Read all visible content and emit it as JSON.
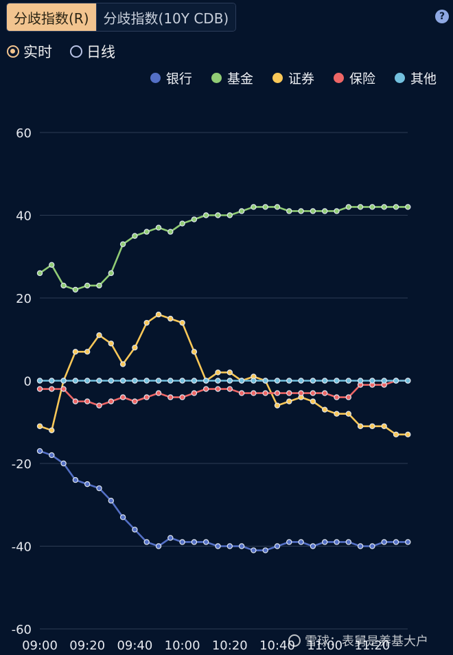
{
  "tabs": [
    {
      "label": "分歧指数(R)",
      "active": true
    },
    {
      "label": "分歧指数(10Y CDB)",
      "active": false
    }
  ],
  "help_label": "?",
  "modes": [
    {
      "label": "实时",
      "selected": true
    },
    {
      "label": "日线",
      "selected": false
    }
  ],
  "watermark": "雪球：表舅是养基大户",
  "chart_data": {
    "type": "line",
    "title": "",
    "xlabel": "",
    "ylabel": "",
    "ylim": [
      -60,
      60
    ],
    "yticks": [
      60,
      40,
      20,
      0,
      -20,
      -40,
      -60
    ],
    "xtick_labels": [
      "09:00",
      "09:20",
      "09:40",
      "10:00",
      "10:20",
      "10:40",
      "11:00",
      "11:20"
    ],
    "x_start": "09:00",
    "x_step_minutes": 5,
    "grid": true,
    "legend_position": "top-right",
    "series": [
      {
        "name": "银行",
        "color": "#5470c6",
        "values": [
          -17,
          -18,
          -20,
          -24,
          -25,
          -26,
          -29,
          -33,
          -36,
          -39,
          -40,
          -38,
          -39,
          -39,
          -39,
          -40,
          -40,
          -40,
          -41,
          -41,
          -40,
          -39,
          -39,
          -40,
          -39,
          -39,
          -39,
          -40,
          -40,
          -39,
          -39,
          -39
        ]
      },
      {
        "name": "基金",
        "color": "#91cc75",
        "values": [
          26,
          28,
          23,
          22,
          23,
          23,
          26,
          33,
          35,
          36,
          37,
          36,
          38,
          39,
          40,
          40,
          40,
          41,
          42,
          42,
          42,
          41,
          41,
          41,
          41,
          41,
          42,
          42,
          42,
          42,
          42,
          42
        ]
      },
      {
        "name": "证券",
        "color": "#fac858",
        "values": [
          -11,
          -12,
          0,
          7,
          7,
          11,
          9,
          4,
          8,
          14,
          16,
          15,
          14,
          7,
          0,
          2,
          2,
          0,
          1,
          0,
          -6,
          -5,
          -4,
          -5,
          -7,
          -8,
          -8,
          -11,
          -11,
          -11,
          -13,
          -13
        ]
      },
      {
        "name": "保险",
        "color": "#ee6666",
        "values": [
          -2,
          -2,
          -2,
          -5,
          -5,
          -6,
          -5,
          -4,
          -5,
          -4,
          -3,
          -4,
          -4,
          -3,
          -2,
          -2,
          -2,
          -3,
          -3,
          -3,
          -3,
          -3,
          -3,
          -3,
          -3,
          -4,
          -4,
          -1,
          -1,
          -1,
          0,
          0
        ]
      },
      {
        "name": "其他",
        "color": "#73c0de",
        "values": [
          0,
          0,
          0,
          0,
          0,
          0,
          0,
          0,
          0,
          0,
          0,
          0,
          0,
          0,
          0,
          0,
          0,
          0,
          0,
          0,
          0,
          0,
          0,
          0,
          0,
          0,
          0,
          0,
          0,
          0,
          0,
          0
        ]
      }
    ]
  }
}
